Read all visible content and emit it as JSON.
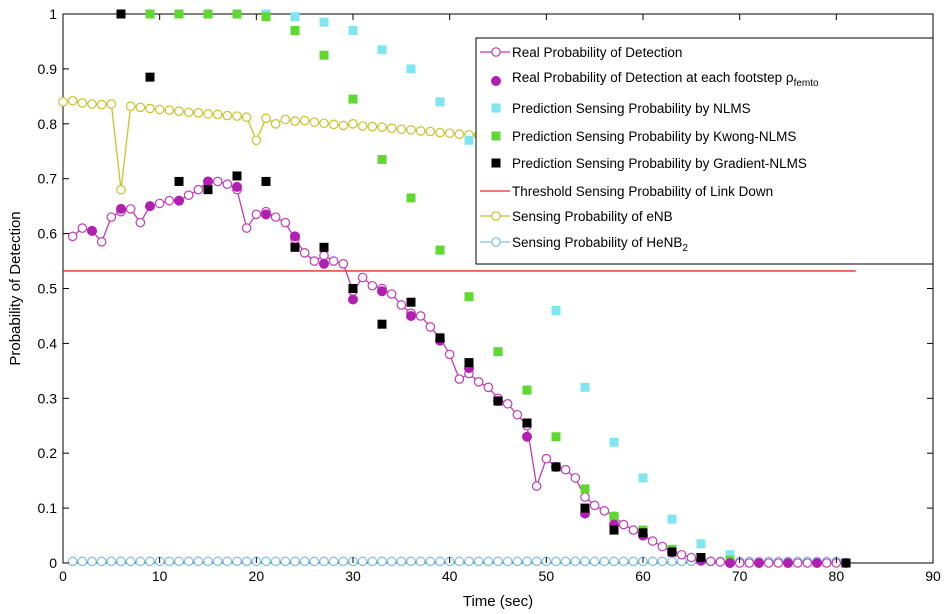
{
  "chart_data": {
    "type": "line",
    "title": "",
    "xlabel": "Time (sec)",
    "ylabel": "Probability of Detection",
    "xlim": [
      0,
      90
    ],
    "ylim": [
      0,
      1
    ],
    "xticks": [
      "0",
      "10",
      "20",
      "30",
      "40",
      "50",
      "60",
      "70",
      "80",
      "90"
    ],
    "yticks": [
      "0",
      "0.1",
      "0.2",
      "0.3",
      "0.4",
      "0.5",
      "0.6",
      "0.7",
      "0.8",
      "0.9",
      "1"
    ],
    "grid": false,
    "legend_position": "top-right",
    "colors": {
      "real": "#c23ab8",
      "real_step": "#b01fb0",
      "nlms": "#7fe6f0",
      "kwong": "#5fd832",
      "gradient": "#000000",
      "threshold": "#e8282a",
      "enb": "#c9c32a",
      "henb": "#79bfe8"
    },
    "series": [
      {
        "name": "Real Probability of Detection",
        "key": "real",
        "style": "line-open-circle",
        "x": [
          1,
          2,
          3,
          4,
          5,
          6,
          7,
          8,
          9,
          10,
          11,
          12,
          13,
          14,
          15,
          16,
          17,
          18,
          19,
          20,
          21,
          22,
          23,
          24,
          25,
          26,
          27,
          28,
          29,
          30,
          31,
          32,
          33,
          34,
          35,
          36,
          37,
          38,
          39,
          40,
          41,
          42,
          43,
          44,
          45,
          46,
          47,
          48,
          49,
          50,
          51,
          52,
          53,
          54,
          55,
          56,
          57,
          58,
          59,
          60,
          61,
          62,
          63,
          64,
          65,
          66,
          67,
          68,
          69,
          70,
          71,
          72,
          73,
          74,
          75,
          76,
          77,
          78,
          79,
          80
        ],
        "y": [
          0.595,
          0.61,
          0.605,
          0.585,
          0.63,
          0.64,
          0.645,
          0.62,
          0.65,
          0.655,
          0.66,
          0.66,
          0.67,
          0.68,
          0.695,
          0.695,
          0.69,
          0.68,
          0.61,
          0.635,
          0.64,
          0.63,
          0.62,
          0.59,
          0.565,
          0.55,
          0.56,
          0.55,
          0.545,
          0.495,
          0.52,
          0.505,
          0.5,
          0.49,
          0.47,
          0.455,
          0.45,
          0.43,
          0.41,
          0.38,
          0.335,
          0.345,
          0.33,
          0.32,
          0.3,
          0.29,
          0.27,
          0.25,
          0.14,
          0.19,
          0.175,
          0.17,
          0.155,
          0.12,
          0.105,
          0.095,
          0.085,
          0.07,
          0.06,
          0.05,
          0.04,
          0.03,
          0.02,
          0.015,
          0.01,
          0.005,
          0.003,
          0.002,
          0,
          0,
          0,
          0,
          0,
          0,
          0,
          0,
          0,
          0,
          0,
          0
        ]
      },
      {
        "name": "Real Probability of Detection at each footstep ρ",
        "name_subscript": "femto",
        "key": "real_step",
        "style": "filled-circle",
        "x": [
          3,
          6,
          9,
          12,
          15,
          18,
          21,
          24,
          27,
          30,
          33,
          36,
          39,
          42,
          45,
          48,
          51,
          54,
          57,
          60,
          63,
          66,
          69,
          72,
          75,
          78,
          81
        ],
        "y": [
          0.605,
          0.645,
          0.65,
          0.66,
          0.695,
          0.685,
          0.635,
          0.595,
          0.545,
          0.48,
          0.495,
          0.45,
          0.405,
          0.355,
          0.295,
          0.23,
          0.175,
          0.09,
          0.07,
          0.05,
          0.02,
          0.005,
          0,
          0,
          0,
          0,
          0
        ]
      },
      {
        "name": "Prediction Sensing Probability by NLMS",
        "key": "nlms",
        "style": "square",
        "x": [
          6,
          9,
          12,
          15,
          18,
          21,
          24,
          27,
          30,
          33,
          36,
          39,
          42,
          45,
          48,
          51,
          54,
          57,
          60,
          63,
          66,
          69
        ],
        "y": [
          1,
          1,
          1,
          1,
          1,
          1,
          0.995,
          0.985,
          0.97,
          0.935,
          0.9,
          0.84,
          0.77,
          0.7,
          0.6,
          0.46,
          0.32,
          0.22,
          0.155,
          0.08,
          0.035,
          0.015
        ]
      },
      {
        "name": "Prediction Sensing Probability by Kwong-NLMS",
        "key": "kwong",
        "style": "square",
        "x": [
          9,
          12,
          15,
          18,
          21,
          24,
          27,
          30,
          33,
          36,
          39,
          42,
          45,
          48,
          51,
          54,
          57,
          60,
          63,
          66,
          69
        ],
        "y": [
          1,
          1,
          1,
          1,
          0.995,
          0.97,
          0.925,
          0.845,
          0.735,
          0.665,
          0.57,
          0.485,
          0.385,
          0.315,
          0.23,
          0.135,
          0.085,
          0.06,
          0.025,
          0.01,
          0.005
        ]
      },
      {
        "name": "Prediction Sensing Probability by Gradient-NLMS",
        "key": "gradient",
        "style": "square",
        "x": [
          6,
          9,
          12,
          15,
          18,
          21,
          24,
          27,
          30,
          33,
          36,
          39,
          42,
          45,
          48,
          51,
          54,
          57,
          60,
          63,
          66,
          81
        ],
        "y": [
          1,
          0.885,
          0.695,
          0.68,
          0.705,
          0.695,
          0.575,
          0.575,
          0.5,
          0.435,
          0.475,
          0.41,
          0.365,
          0.295,
          0.255,
          0.175,
          0.1,
          0.06,
          0.055,
          0.02,
          0.01,
          0
        ]
      },
      {
        "name": "Threshold Sensing Probability of Link Down",
        "key": "threshold",
        "style": "line",
        "x": [
          0,
          82
        ],
        "y": [
          0.532,
          0.532
        ]
      },
      {
        "name": "Sensing Probability of eNB",
        "key": "enb",
        "style": "line-open-circle",
        "x": [
          0,
          1,
          2,
          3,
          4,
          5,
          6,
          7,
          8,
          9,
          10,
          11,
          12,
          13,
          14,
          15,
          16,
          17,
          18,
          19,
          20,
          21,
          22,
          23,
          24,
          25,
          26,
          27,
          28,
          29,
          30,
          31,
          32,
          33,
          34,
          35,
          36,
          37,
          38,
          39,
          40,
          41,
          42,
          43,
          44,
          45
        ],
        "y": [
          0.84,
          0.842,
          0.838,
          0.836,
          0.835,
          0.836,
          0.68,
          0.832,
          0.83,
          0.828,
          0.826,
          0.825,
          0.823,
          0.821,
          0.82,
          0.818,
          0.817,
          0.815,
          0.814,
          0.812,
          0.77,
          0.81,
          0.8,
          0.808,
          0.805,
          0.806,
          0.803,
          0.801,
          0.799,
          0.797,
          0.8,
          0.796,
          0.795,
          0.794,
          0.792,
          0.79,
          0.789,
          0.787,
          0.786,
          0.784,
          0.783,
          0.781,
          0.78,
          0.779,
          0.777,
          0.776
        ]
      },
      {
        "name": "Sensing Probability of HeNB",
        "name_subscript": "2",
        "key": "henb",
        "style": "line-open-circle",
        "x": [
          1,
          2,
          3,
          4,
          5,
          6,
          7,
          8,
          9,
          10,
          11,
          12,
          13,
          14,
          15,
          16,
          17,
          18,
          19,
          20,
          21,
          22,
          23,
          24,
          25,
          26,
          27,
          28,
          29,
          30,
          31,
          32,
          33,
          34,
          35,
          36,
          37,
          38,
          39,
          40,
          41,
          42,
          43,
          44,
          45,
          46,
          47,
          48,
          49,
          50,
          51,
          52,
          53,
          54,
          55,
          56,
          57,
          58,
          59,
          60,
          61,
          62,
          63,
          64,
          65,
          66,
          67,
          68,
          69,
          70,
          71,
          72,
          73,
          74,
          75,
          76,
          77,
          78,
          79,
          80
        ],
        "y": [
          0.003,
          0.003,
          0.003,
          0.003,
          0.003,
          0.003,
          0.003,
          0.003,
          0.003,
          0.003,
          0.003,
          0.003,
          0.003,
          0.003,
          0.003,
          0.003,
          0.003,
          0.003,
          0.003,
          0.003,
          0.003,
          0.003,
          0.003,
          0.003,
          0.003,
          0.003,
          0.003,
          0.003,
          0.003,
          0.003,
          0.003,
          0.003,
          0.003,
          0.003,
          0.003,
          0.003,
          0.003,
          0.003,
          0.003,
          0.003,
          0.003,
          0.003,
          0.003,
          0.003,
          0.003,
          0.003,
          0.003,
          0.003,
          0.003,
          0.003,
          0.003,
          0.003,
          0.003,
          0.003,
          0.003,
          0.003,
          0.003,
          0.003,
          0.003,
          0.003,
          0.003,
          0.003,
          0.003,
          0.003,
          0.003,
          0.003,
          0.003,
          0.003,
          0.003,
          0.003,
          0.003,
          0.003,
          0.003,
          0.003,
          0.003,
          0.003,
          0.003,
          0.003,
          0.003,
          0.003
        ]
      }
    ]
  }
}
